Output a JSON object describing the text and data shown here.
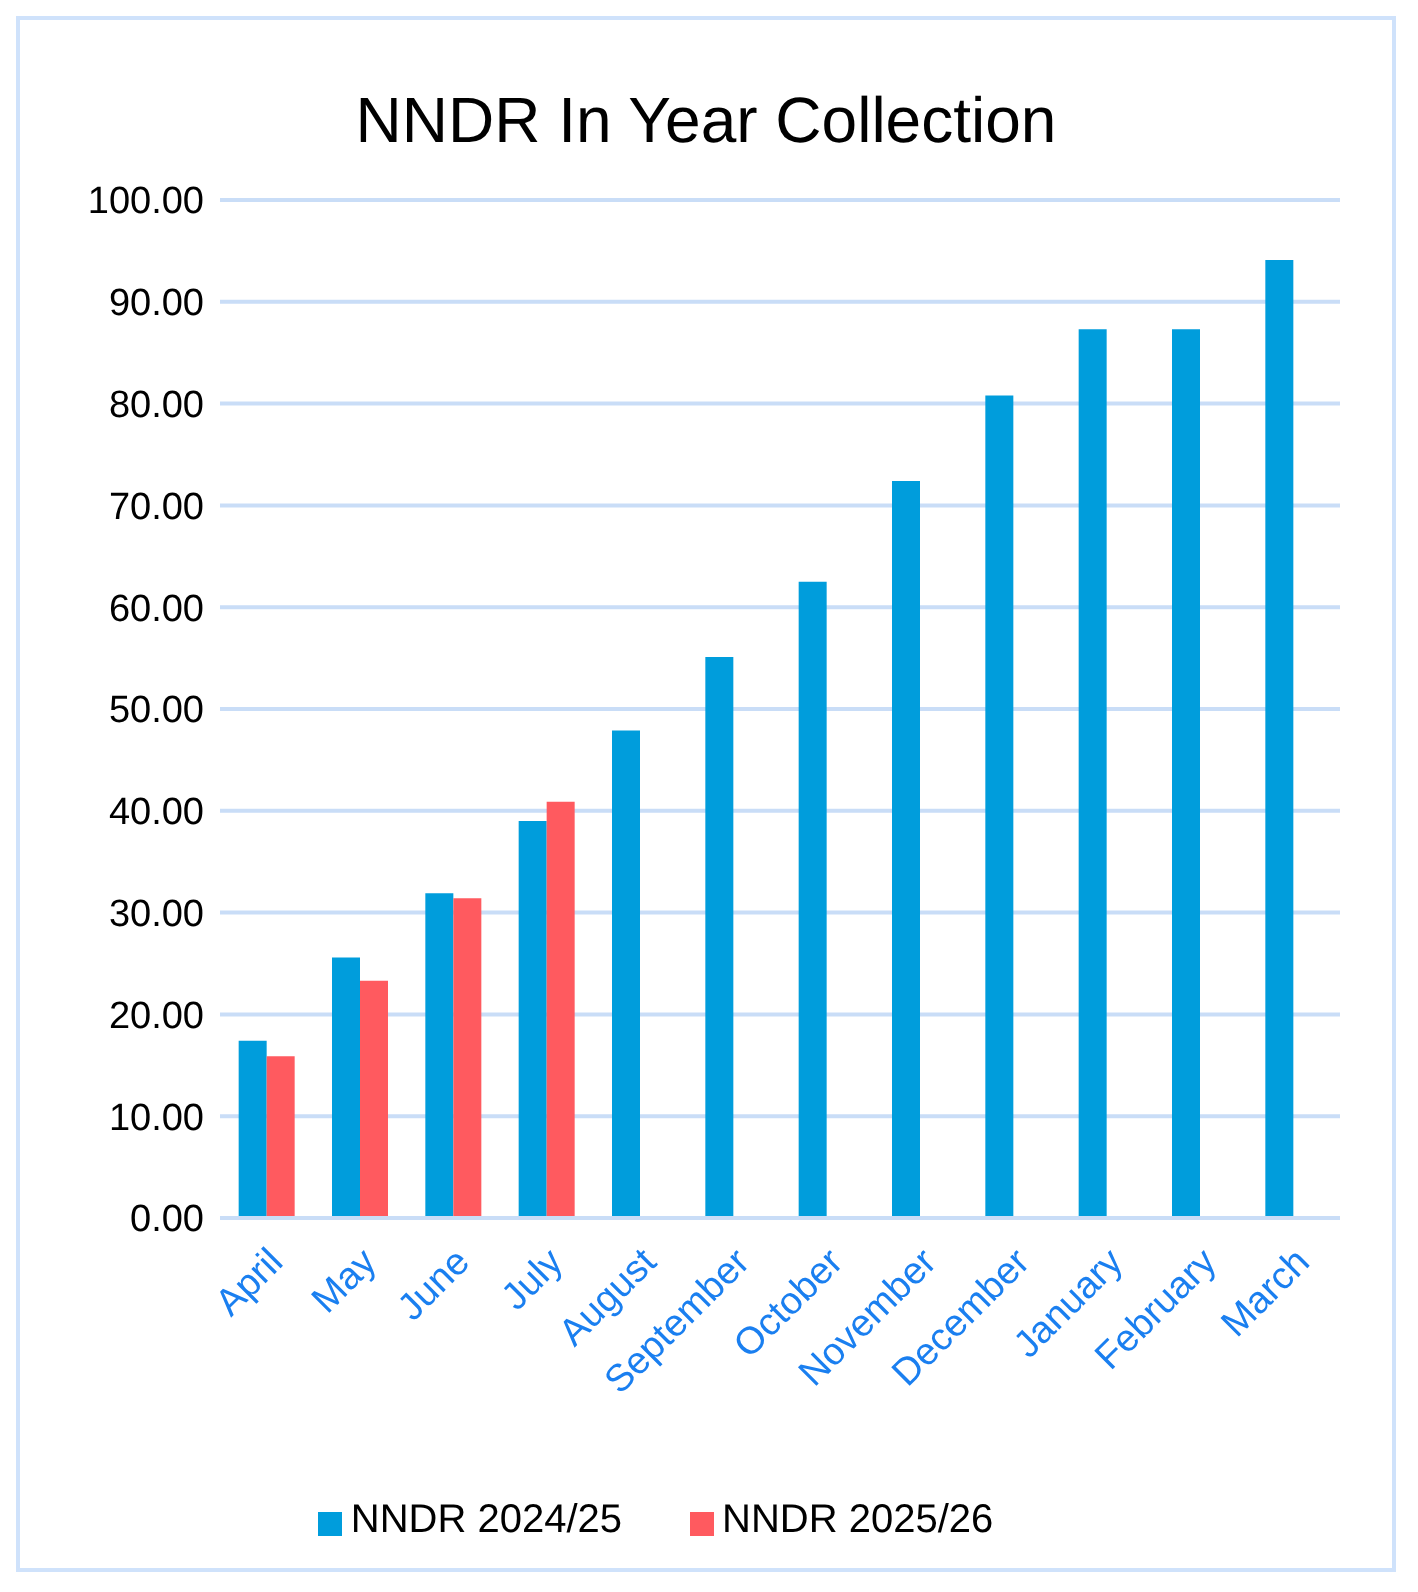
{
  "chart_data": {
    "type": "bar",
    "title": "NNDR In Year Collection",
    "categories": [
      "April",
      "May",
      "June",
      "July",
      "August",
      "September",
      "October",
      "November",
      "December",
      "January",
      "February",
      "March"
    ],
    "series": [
      {
        "name": "NNDR 2024/25",
        "color": "#009ddc",
        "values": [
          17.4,
          25.6,
          31.9,
          39.0,
          47.9,
          55.1,
          62.5,
          72.4,
          80.8,
          87.3,
          87.3,
          94.1
        ]
      },
      {
        "name": "NNDR 2025/26",
        "color": "#ff5a5f",
        "values": [
          15.9,
          23.3,
          31.4,
          40.9,
          null,
          null,
          null,
          null,
          null,
          null,
          null,
          null
        ]
      }
    ],
    "ylim": [
      0,
      100
    ],
    "yticks": [
      {
        "value": 0,
        "label": "0.00"
      },
      {
        "value": 10,
        "label": "10.00"
      },
      {
        "value": 20,
        "label": "20.00"
      },
      {
        "value": 30,
        "label": "30.00"
      },
      {
        "value": 40,
        "label": "40.00"
      },
      {
        "value": 50,
        "label": "50.00"
      },
      {
        "value": 60,
        "label": "60.00"
      },
      {
        "value": 70,
        "label": "70.00"
      },
      {
        "value": 80,
        "label": "80.00"
      },
      {
        "value": 90,
        "label": "90.00"
      },
      {
        "value": 100,
        "label": "100.00"
      }
    ],
    "grid": "y",
    "legend": "bottom"
  }
}
